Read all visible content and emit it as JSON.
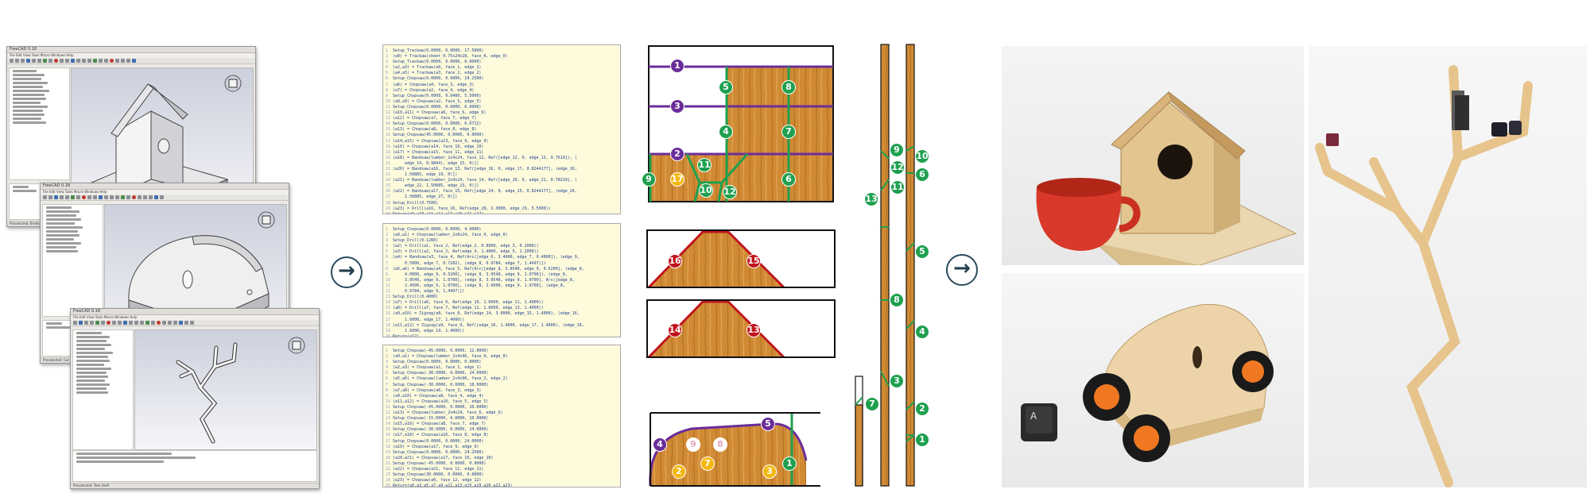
{
  "cad_windows": [
    {
      "title": "FreeCAD 0.18",
      "menu": "File  Edit  View  Tools  Macro  Windows  Help",
      "tree_rows": 14,
      "status": "Preselected: Birdhouse"
    },
    {
      "title": "FreeCAD 0.18",
      "menu": "File  Edit  View  Tools  Macro  Windows  Help",
      "tree_rows": 12,
      "status": "Preselected: Car"
    },
    {
      "title": "FreeCAD 0.18",
      "menu": "File  Edit  View  Tools  Macro  Windows  Help",
      "tree_rows": 16,
      "status": "Preselected: Tree shelf"
    }
  ],
  "code_panels": [
    {
      "lines": [
        "Setup_Trackaw(0.0000, 0.0000, 17.5000)",
        "(a0) = Trackaw(sheet_0.75x24x28, face_0, edge_0)",
        "Setup_Trackaw(0.0000, 0.0000, 0.0000)",
        "(a2,a3) = Trackaw(a0, face_1, edge_1)",
        "(a4,a5) = Trackaw(a3, face_2, edge_2)",
        "Setup_Chopsaw(0.0000, 0.0000, 10.2500)",
        "(a6) = Chopsaw(a4, face_3, edge_3)",
        "(a7) = Chopsaw(a2, face_4, edge_4)",
        "Setup_Chopsaw(0.0000, 0.0400, 5.5000)",
        "(a8,a9) = Chopsaw(a2, face_5, edge_5)",
        "Setup_Chopsaw(0.0000, 0.0000, 0.0000)",
        "(a10,a11) = Chopsaw(a6, face_6, edge_6)",
        "(a12) = Chopsaw(a7, face_7, edge_7)",
        "Setup_Chopsaw(0.0000, 0.0000, 0.6712)",
        "(a13) = Chopsaw(a8, face_8, edge_8)",
        "Setup_Chopsaw(45.0000, 0.0000, 0.0000)",
        "(a14,a15) = Chopsaw(a13, face_9, edge_9)",
        "(a16) = Chopsaw(a14, face_10, edge_10)",
        "(a17) = Chopsaw(a15, face_11, edge_11)",
        "(a18) = Bandsaw(lumber_2x4x24, face_12, Ref([edge_12, 0, edge_13, 9.7619]), (",
        "     edge_14, 0.9844), edge_15, 0)])",
        "(a20) = Bandsaw(a16, face_13, Ref([edge_16, 0, edge_17, 0.8244177], (edge_16,",
        "     1.50885, edge_19, 0)])",
        "(a21) = Bandsaw(lumber_2x4x24, face_14, Ref([edge_20, 0, edge_21, 0.78219], (",
        "     edge_22, 1.50885, edge_23, 0)])",
        "(a22) = Bandsaw(a17, face_15, Ref([edge_24, 0, edge_25, 0.8244177], (edge_26,",
        "     1.50885, edge_27, 0)])",
        "Setup_Drill(0.7500)",
        "(a23) = Drill(a16, face_16, Ref(edge_28, 2.0000, edge_29, 5.5000))",
        "Return(a9,a10,a11,a12,a17,a20,a21,a22)"
      ]
    },
    {
      "lines": [
        "Setup_Chopsaw(0.0000, 0.0000, 4.0000)",
        "(a0,a1) = Chopsaw(lumber_2x6x24, face_0, edge_0)",
        "Setup_Drill(0.1260)",
        "(a2) = Drill(a1, face_2, Ref(edge_2, 0.8000, edge_3, 0.2000))",
        "(a3) = Drill(a2, face_2, Ref(edge_4, 1.4000, edge_5, 1.2000))",
        "(a4) = Bandsaw(a3, face_4, Ref(Arc([edge_6, 3.4000, edge_7, 0.4000]), (edge_9,",
        "     0.5000, edge_7, 0.7282), (edge_8, 0.9784, edge_7, 1.4497)])",
        "(a5,a6) = Bandsaw(a4, face_5, Ref(Arc([edge_8, 3.0540, edge_9, 0.5200], (edge_8,",
        "     4.0000, edge_9, 0.5200], (edge_8, 3.0540, edge_9, 1.0700]), (edge_8,",
        "     3.0540, edge_9, 1.0700], (edge_8, 3.0540, edge_9, 1.0700], Arc([edge_8,",
        "     2.4500, edge_9, 1.0700], (edge_8, 2.0000, edge_9, 1.0700], (edge_8,",
        "     0.9784, edge_9, 1.4497)])",
        "Setup_Drill(0.4000)",
        "(a7) = Drill(a6, face_6, Ref(edge_10, 1.6000, edge_11, 1.4000))",
        "(a8) = Drill(a7, face_7, Ref(edge_12, 1.6000, edge_13, 1.4000))",
        "(a9,a10) = Zigzag(a8, face_8, Ref(edge_14, 3.0000, edge_15, 1.4000), (edge_16,",
        "     1.6000, edge_17, 1.4000))",
        "(a11,a12) = Zigzag(a9, face_9, Ref([edge_16, 1.4000, edge_17, 1.4000), (edge_18,",
        "     1.6000, edge_19, 1.4000))",
        "Return(a12)"
      ]
    },
    {
      "lines": [
        "Setup_Chopsaw(-45.0000, 0.0000, 12.0000)",
        "(a0,a1) = Chopsaw(lumber_2x4x96, face_0, edge_0)",
        "Setup_Chopsaw(0.0000, 0.0000, 0.0000)",
        "(a2,a3) = Chopsaw(a1, face_1, edge_1)",
        "Setup_Chopsaw(-30.0000, 0.0000, 24.0000)",
        "(a5,a6) = Chopsaw(lumber_2x4x96, face_2, edge_2)",
        "Setup_Chopsaw(-30.0000, 0.0000, 18.0000)",
        "(a7,a8) = Chopsaw(a6, face_3, edge_3)",
        "(a9,a10) = Chopsaw(a8, face_4, edge_4)",
        "(a11,a12) = Chopsaw(a10, face_5, edge_5)",
        "Setup_Chopsaw(-45.0000, 0.0000, 10.0000)",
        "(a13) = Chopsaw(lumber_2x4x24, face_6, edge_6)",
        "Setup_Chopsaw(-15.0000, 0.0000, 10.0000)",
        "(a15,a16) = Chopsaw(a8, face_7, edge_7)",
        "Setup_Chopsaw(-30.0000, 0.0000, 24.0000)",
        "(a17,a18) = Chopsaw(a16, face_8, edge_8)",
        "Setup_Chopsaw(0.0000, 0.0000, 24.0000)",
        "(a19) = Chopsaw(a17, face_9, edge_9)",
        "Setup_Chopsaw(0.0000, 0.0000, 24.2500)",
        "(a20,a21) = Chopsaw(a17, face_10, edge_10)",
        "Setup_Chopsaw(-45.0000, 0.0000, 0.0000)",
        "(a22) = Chopsaw(a21, face_11, edge_11)",
        "Setup_Chopsaw(30.0000, 0.0000, 0.0000)",
        "(a23) = Chopsaw(a0, face_12, edge_12)",
        "Return(a0,a3,a5,a7,a9,a11,a13,a15,a19,a20,a22,a23)"
      ]
    }
  ],
  "cut_labels": {
    "birdhouse_purple": [
      "1",
      "3",
      "2"
    ],
    "birdhouse_green": [
      "5",
      "8",
      "4",
      "7",
      "11",
      "9",
      "10",
      "12",
      "6"
    ],
    "birdhouse_yellow": [
      "17"
    ],
    "roof_red_a": [
      "16",
      "15"
    ],
    "roof_red_b": [
      "14",
      "13"
    ],
    "car_purple": [
      "4",
      "5"
    ],
    "car_green": [
      "1"
    ],
    "car_white": [
      "9",
      "8"
    ],
    "car_yellow": [
      "7",
      "2",
      "3"
    ],
    "shelf_green": [
      "9",
      "10",
      "12",
      "6",
      "11",
      "13",
      "5",
      "8",
      "4",
      "3",
      "7",
      "2",
      "1"
    ]
  },
  "colors": {
    "purple": "#6b2d9a",
    "green": "#1fa04f",
    "red": "#c0141e",
    "yellow": "#f4b710",
    "wood": "#d6923c",
    "arrow": "#233f4f",
    "code_bg": "#fdfbdc"
  },
  "keycap_label": "A",
  "arrows": [
    "right-arrow",
    "right-arrow"
  ]
}
